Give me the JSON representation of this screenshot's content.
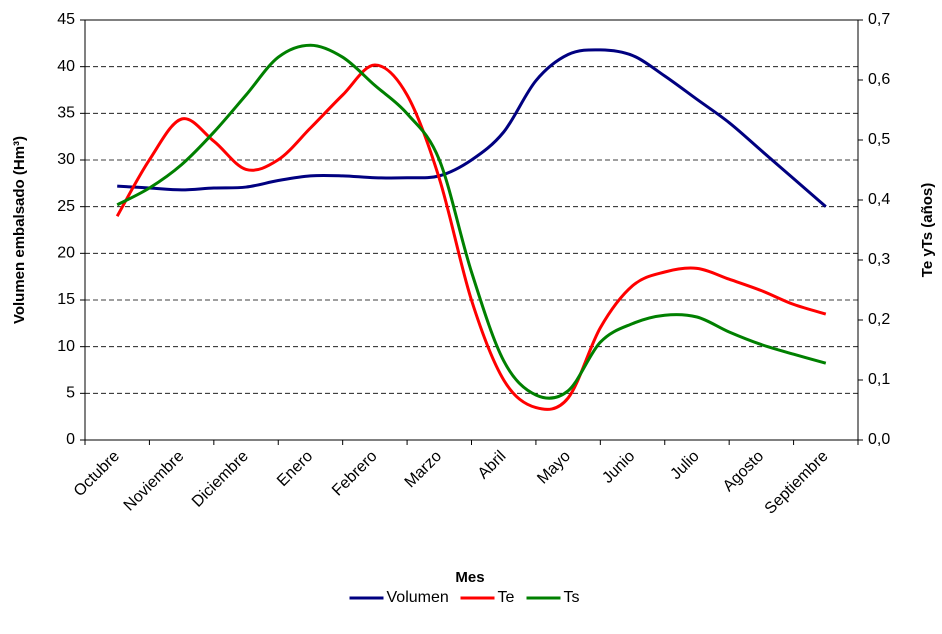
{
  "chart_data": {
    "type": "line",
    "categories": [
      "Octubre",
      null,
      "Noviembre",
      null,
      "Diciembre",
      null,
      "Enero",
      null,
      "Febrero",
      null,
      "Marzo",
      null,
      "Abril",
      null,
      "Mayo",
      null,
      "Junio",
      null,
      "Julio",
      null,
      "Agosto",
      null,
      "Septiembre"
    ],
    "x_label": "Mes",
    "y_label": "Volumen embalsado (Hm³)",
    "y2_label": "Te yTs (años)",
    "ylim": [
      0,
      45
    ],
    "yticks": [
      0,
      5,
      10,
      15,
      20,
      25,
      30,
      35,
      40,
      45
    ],
    "y2lim": [
      0,
      0.7
    ],
    "y2ticks": [
      {
        "value": 0,
        "label": "0,0"
      },
      {
        "value": 0.1,
        "label": "0,1"
      },
      {
        "value": 0.2,
        "label": "0,2"
      },
      {
        "value": 0.3,
        "label": "0,3"
      },
      {
        "value": 0.4,
        "label": "0,4"
      },
      {
        "value": 0.5,
        "label": "0,5"
      },
      {
        "value": 0.6,
        "label": "0,6"
      },
      {
        "value": 0.7,
        "label": "0,7"
      }
    ],
    "grid": true,
    "legend": "bottom",
    "series": [
      {
        "name": "Volumen",
        "color": "#000080",
        "axis": "y",
        "values": [
          27.2,
          27.0,
          26.8,
          27.0,
          27.1,
          27.8,
          28.3,
          28.3,
          28.1,
          28.1,
          28.3,
          30.0,
          33.0,
          38.5,
          41.3,
          41.8,
          41.2,
          39.0,
          36.5,
          34.0,
          31.0,
          28.0,
          25.0
        ]
      },
      {
        "name": "Te",
        "color": "#ff0000",
        "axis": "y2",
        "values": [
          0.373,
          0.467,
          0.535,
          0.498,
          0.451,
          0.467,
          0.52,
          0.575,
          0.625,
          0.575,
          0.436,
          0.233,
          0.1,
          0.054,
          0.07,
          0.187,
          0.257,
          0.28,
          0.286,
          0.268,
          0.249,
          0.226,
          0.21
        ]
      },
      {
        "name": "Ts",
        "color": "#008000",
        "axis": "y2",
        "values": [
          0.392,
          0.42,
          0.459,
          0.513,
          0.575,
          0.638,
          0.658,
          0.638,
          0.591,
          0.544,
          0.467,
          0.28,
          0.132,
          0.075,
          0.082,
          0.163,
          0.194,
          0.208,
          0.205,
          0.18,
          0.159,
          0.143,
          0.128
        ]
      }
    ]
  }
}
